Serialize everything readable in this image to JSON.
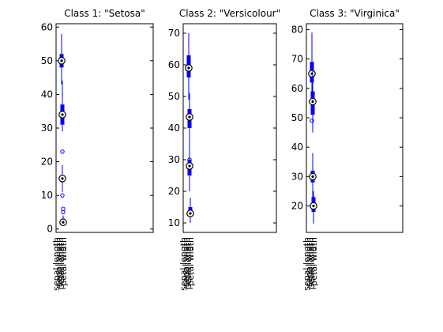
{
  "chart_data": [
    {
      "type": "box",
      "title": "Class 1: \"Setosa\"",
      "ylim": [
        -1,
        61
      ],
      "yticks": [
        0,
        10,
        20,
        30,
        40,
        50,
        60
      ],
      "categories": [
        "sepal length",
        "sepal width",
        "petal length",
        "petal width"
      ],
      "boxes": [
        {
          "label": "sepal length",
          "min": 43,
          "q1": 48,
          "median": 50,
          "q3": 52,
          "max": 58,
          "outliers": []
        },
        {
          "label": "sepal width",
          "min": 29,
          "q1": 31,
          "median": 34,
          "q3": 37,
          "max": 44,
          "outliers": [
            23
          ]
        },
        {
          "label": "petal length",
          "min": 11,
          "q1": 14,
          "median": 15,
          "q3": 16,
          "max": 19,
          "outliers": [
            10
          ]
        },
        {
          "label": "petal width",
          "min": 1,
          "q1": 2,
          "median": 2,
          "q3": 3,
          "max": 4,
          "outliers": [
            5,
            6
          ]
        }
      ]
    },
    {
      "type": "box",
      "title": "Class 2: \"Versicolour\"",
      "ylim": [
        7,
        73
      ],
      "yticks": [
        10,
        20,
        30,
        40,
        50,
        60,
        70
      ],
      "categories": [
        "sepal length",
        "sepal width",
        "petal length",
        "petal width"
      ],
      "boxes": [
        {
          "label": "sepal length",
          "min": 49,
          "q1": 56,
          "median": 59,
          "q3": 63,
          "max": 70,
          "outliers": []
        },
        {
          "label": "sepal width",
          "min": 20,
          "q1": 25,
          "median": 28,
          "q3": 30,
          "max": 34,
          "outliers": []
        },
        {
          "label": "petal length",
          "min": 33,
          "q1": 40,
          "median": 43.5,
          "q3": 46,
          "max": 51,
          "outliers": [
            30
          ]
        },
        {
          "label": "petal width",
          "min": 10,
          "q1": 12,
          "median": 13,
          "q3": 15,
          "max": 18,
          "outliers": []
        }
      ]
    },
    {
      "type": "box",
      "title": "Class 3: \"Virginica\"",
      "ylim": [
        11,
        82
      ],
      "yticks": [
        20,
        30,
        40,
        50,
        60,
        70,
        80
      ],
      "categories": [
        "sepal length",
        "sepal width",
        "petal length",
        "petal width"
      ],
      "boxes": [
        {
          "label": "sepal length",
          "min": 56,
          "q1": 62,
          "median": 65,
          "q3": 69,
          "max": 79,
          "outliers": [
            49
          ]
        },
        {
          "label": "sepal width",
          "min": 22,
          "q1": 28,
          "median": 30,
          "q3": 32,
          "max": 38,
          "outliers": []
        },
        {
          "label": "petal length",
          "min": 45,
          "q1": 51,
          "median": 55.5,
          "q3": 59,
          "max": 69,
          "outliers": []
        },
        {
          "label": "petal width",
          "min": 14,
          "q1": 18,
          "median": 20,
          "q3": 23,
          "max": 25,
          "outliers": []
        }
      ]
    }
  ],
  "colors": {
    "box": "#0000ff",
    "axes": "#000000",
    "background": "#ffffff"
  }
}
